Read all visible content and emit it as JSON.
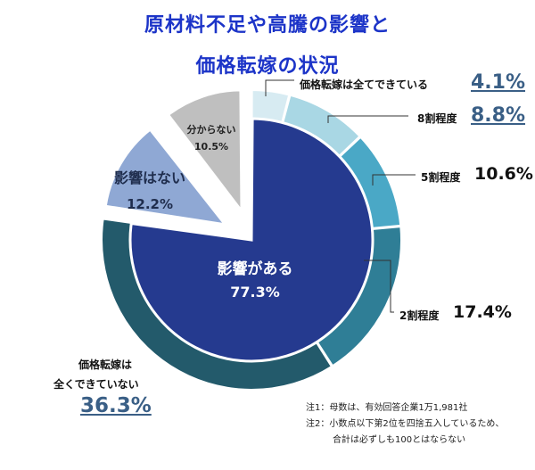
{
  "title_line1": "原材料不足や高騰の影響と",
  "title_line2": "価格転嫁の状況",
  "chart_data": {
    "type": "pie",
    "inner": {
      "slices": [
        {
          "label": "影響がある",
          "value": 77.3,
          "display": "77.3%",
          "color": "#253a8f"
        },
        {
          "label": "影響はない",
          "value": 12.2,
          "display": "12.2%",
          "color": "#8fa8d4"
        },
        {
          "label": "分からない",
          "value": 10.5,
          "display": "10.5%",
          "color": "#bfbfbf"
        }
      ]
    },
    "outer": {
      "slices": [
        {
          "label": "価格転嫁は全てできている",
          "value": 4.1,
          "display": "4.1%",
          "color": "#d7ebf2"
        },
        {
          "label": "8割程度",
          "value": 8.8,
          "display": "8.8%",
          "color": "#a9d7e4"
        },
        {
          "label": "5割程度",
          "value": 10.6,
          "display": "10.6%",
          "color": "#4aa8c6"
        },
        {
          "label": "2割程度",
          "value": 17.4,
          "display": "17.4%",
          "color": "#2f7e96"
        },
        {
          "label_line1": "価格転嫁は",
          "label_line2": "全くできていない",
          "value": 36.3,
          "display": "36.3%",
          "color": "#235a6b"
        }
      ]
    }
  },
  "notes": {
    "note1": "注1：母数は、有効回答企業1万1,981社",
    "note2": "注2：小数点以下第2位を四捨五入しているため、",
    "note3": "合計は必ずしも100とはならない"
  }
}
